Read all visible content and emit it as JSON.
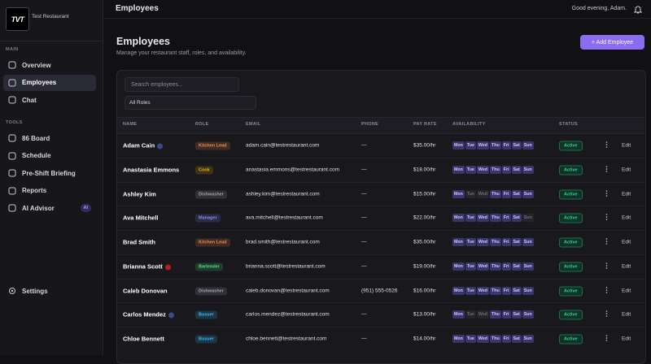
{
  "sidebar": {
    "logo": "TVT",
    "brand": "Test Restaurant",
    "sections": [
      {
        "title": "MAIN",
        "items": [
          "Overview",
          "Employees",
          "Chat"
        ]
      },
      {
        "title": "TOOLS",
        "items": [
          "86 Board",
          "Schedule",
          "Pre-Shift Briefing",
          "Reports",
          "AI Advisor"
        ]
      }
    ],
    "active": [
      0,
      1
    ],
    "ai_badge": "AI",
    "settings": "Settings"
  },
  "header": {
    "title": "Employees",
    "greeting": "Good evening, Adam."
  },
  "page": {
    "title": "Employees",
    "subtitle": "Manage your restaurant staff, roles, and availability.",
    "add_button": "+ Add Employee"
  },
  "filters": {
    "search_placeholder": "Search employees...",
    "role_select": "All Roles"
  },
  "table": {
    "columns": [
      "NAME",
      "ROLE",
      "EMAIL",
      "PHONE",
      "PAY RATE",
      "AVAILABILITY",
      "STATUS"
    ],
    "days": [
      "Mon",
      "Tue",
      "Wed",
      "Thu",
      "Fri",
      "Sat",
      "Sun"
    ],
    "edit_label": "Edit",
    "rows": [
      {
        "name": "Adam Cain",
        "badge": "#3b4a8a",
        "role": "Kitchen Lead",
        "role_color": "#f08a4b",
        "email": "adam.cain@testrestaurant.com",
        "phone": "—",
        "pay_rate": "$35.00/hr",
        "availability": [
          true,
          true,
          true,
          true,
          true,
          true,
          true
        ],
        "status": "Active"
      },
      {
        "name": "Anastasia Emmons",
        "badge": null,
        "role": "Cook",
        "role_color": "#eab308",
        "email": "anastasia.emmons@testrestaurant.com",
        "phone": "—",
        "pay_rate": "$18.00/hr",
        "availability": [
          true,
          true,
          true,
          true,
          true,
          true,
          true
        ],
        "status": "Active"
      },
      {
        "name": "Ashley Kim",
        "badge": null,
        "role": "Dishwasher",
        "role_color": "#a1a1aa",
        "email": "ashley.kim@testrestaurant.com",
        "phone": "—",
        "pay_rate": "$15.00/hr",
        "availability": [
          true,
          false,
          false,
          true,
          true,
          true,
          true
        ],
        "status": "Active"
      },
      {
        "name": "Ava Mitchell",
        "badge": null,
        "role": "Manager",
        "role_color": "#818cf8",
        "email": "ava.mitchell@testrestaurant.com",
        "phone": "—",
        "pay_rate": "$22.00/hr",
        "availability": [
          true,
          true,
          true,
          true,
          true,
          true,
          false
        ],
        "status": "Active"
      },
      {
        "name": "Brad Smith",
        "badge": null,
        "role": "Kitchen Lead",
        "role_color": "#f08a4b",
        "email": "brad.smith@testrestaurant.com",
        "phone": "—",
        "pay_rate": "$35.00/hr",
        "availability": [
          true,
          true,
          true,
          true,
          true,
          true,
          true
        ],
        "status": "Active"
      },
      {
        "name": "Brianna Scott",
        "badge": "#b91c1c",
        "role": "Bartender",
        "role_color": "#4ade80",
        "email": "brianna.scott@testrestaurant.com",
        "phone": "—",
        "pay_rate": "$19.00/hr",
        "availability": [
          true,
          true,
          true,
          true,
          true,
          true,
          true
        ],
        "status": "Active"
      },
      {
        "name": "Caleb Donovan",
        "badge": null,
        "role": "Dishwasher",
        "role_color": "#a1a1aa",
        "email": "caleb.donovan@testrestaurant.com",
        "phone": "(951) 555-0526",
        "pay_rate": "$16.00/hr",
        "availability": [
          true,
          true,
          true,
          true,
          true,
          true,
          true
        ],
        "status": "Active"
      },
      {
        "name": "Carlos Mendez",
        "badge": "#3b4a8a",
        "role": "Busser",
        "role_color": "#38bdf8",
        "email": "carlos.mendez@testrestaurant.com",
        "phone": "—",
        "pay_rate": "$13.00/hr",
        "availability": [
          true,
          false,
          false,
          true,
          true,
          true,
          true
        ],
        "status": "Active"
      },
      {
        "name": "Chloe Bennett",
        "badge": null,
        "role": "Busser",
        "role_color": "#38bdf8",
        "email": "chloe.bennett@testrestaurant.com",
        "phone": "—",
        "pay_rate": "$14.00/hr",
        "availability": [
          true,
          true,
          true,
          true,
          true,
          true,
          true
        ],
        "status": "Active"
      }
    ]
  }
}
